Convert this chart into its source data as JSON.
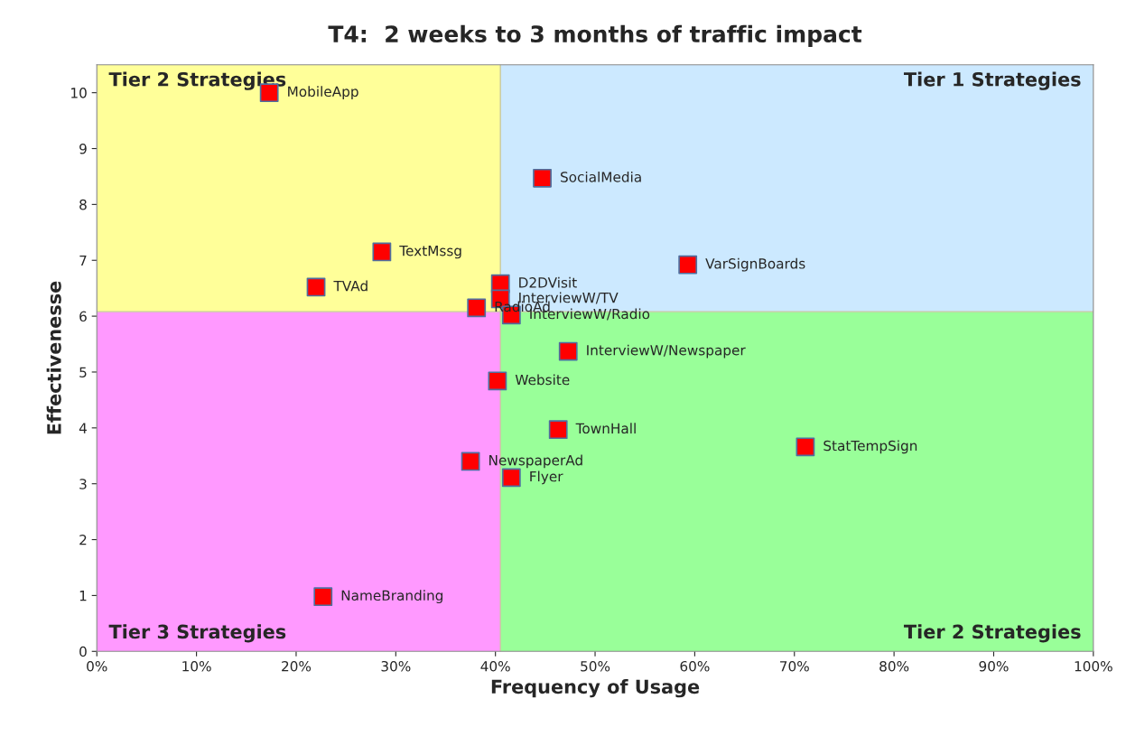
{
  "chart_data": {
    "type": "scatter",
    "title": "T4:  2 weeks to 3 months of traffic impact",
    "xlabel": "Frequency of Usage",
    "ylabel": "Effectivenesse",
    "x": [
      17.3,
      44.7,
      28.6,
      59.3,
      22.0,
      40.5,
      40.5,
      38.1,
      41.6,
      47.3,
      40.2,
      46.3,
      71.1,
      37.5,
      41.6,
      22.7
    ],
    "series": [
      {
        "color": "#ff0000",
        "values": [
          10.0,
          8.47,
          7.15,
          6.92,
          6.52,
          6.58,
          6.31,
          6.15,
          6.02,
          5.37,
          4.84,
          3.97,
          3.66,
          3.4,
          3.11,
          0.98
        ]
      }
    ],
    "annotations": [
      {
        "text": "MobileApp",
        "x": 17.3,
        "y": 10.0
      },
      {
        "text": "SocialMedia",
        "x": 44.7,
        "y": 8.47
      },
      {
        "text": "TextMssg",
        "x": 28.6,
        "y": 7.15
      },
      {
        "text": "VarSignBoards",
        "x": 59.3,
        "y": 6.92
      },
      {
        "text": "TVAd",
        "x": 22.0,
        "y": 6.52
      },
      {
        "text": "D2DVisit",
        "x": 40.5,
        "y": 6.58
      },
      {
        "text": "InterviewW/TV",
        "x": 40.5,
        "y": 6.31
      },
      {
        "text": "RadioAd",
        "x": 38.1,
        "y": 6.15
      },
      {
        "text": "InterviewW/Radio",
        "x": 41.6,
        "y": 6.02
      },
      {
        "text": "InterviewW/Newspaper",
        "x": 47.3,
        "y": 5.37
      },
      {
        "text": "Website",
        "x": 40.2,
        "y": 4.84
      },
      {
        "text": "TownHall",
        "x": 46.3,
        "y": 3.97
      },
      {
        "text": "StatTempSign",
        "x": 71.1,
        "y": 3.66
      },
      {
        "text": "NewspaperAd",
        "x": 37.5,
        "y": 3.4
      },
      {
        "text": "Flyer",
        "x": 41.6,
        "y": 3.11
      },
      {
        "text": "NameBranding",
        "x": 22.7,
        "y": 0.98
      },
      "Tier 2 Strategies",
      "Tier 1 Strategies",
      "Tier 3 Strategies",
      "Tier 2 Strategies"
    ],
    "ref_lines": [
      {
        "axis": "x",
        "value": 40.5,
        "color": "#c8c8a0"
      },
      {
        "axis": "y",
        "value": 6.08,
        "color": "#c8c8a0"
      }
    ],
    "xlim": [
      0,
      100
    ],
    "ylim": [
      0,
      10.5
    ],
    "xticks": [
      {
        "value": 0,
        "label": "0%"
      },
      {
        "value": 10,
        "label": "10%"
      },
      {
        "value": 20,
        "label": "20%"
      },
      {
        "value": 30,
        "label": "30%"
      },
      {
        "value": 40,
        "label": "40%"
      },
      {
        "value": 50,
        "label": "50%"
      },
      {
        "value": 60,
        "label": "60%"
      },
      {
        "value": 70,
        "label": "70%"
      },
      {
        "value": 80,
        "label": "80%"
      },
      {
        "value": 90,
        "label": "90%"
      },
      {
        "value": 100,
        "label": "100%"
      }
    ],
    "yticks": [
      0,
      1,
      2,
      3,
      4,
      5,
      6,
      7,
      8,
      9,
      10
    ],
    "marker": "square",
    "grid": false,
    "legend": false
  }
}
